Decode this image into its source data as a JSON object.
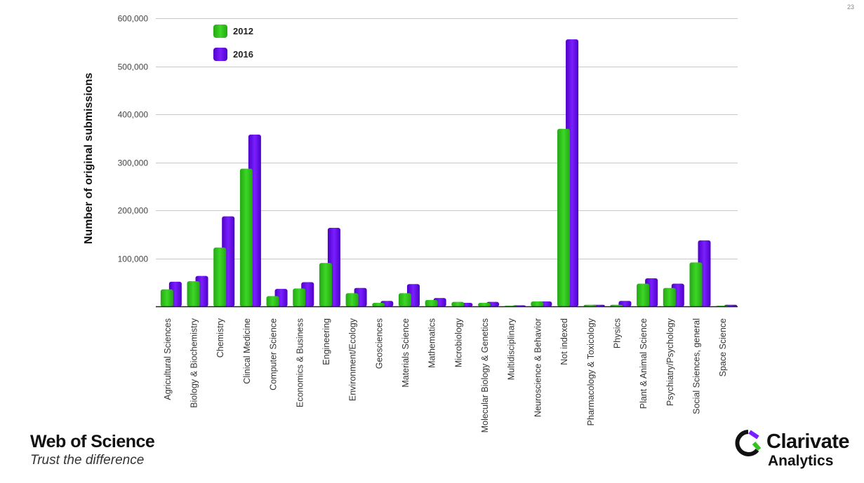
{
  "page": {
    "number": "23"
  },
  "branding": {
    "left_title": "Web of Science",
    "left_tagline": "Trust the difference",
    "right_name": "Clarivate",
    "right_sub": "Analytics",
    "logo_icon": "clarivate-logo-icon"
  },
  "colors": {
    "series_2012": "#33c21f",
    "series_2016": "#6a0dff",
    "grid": "#c8c8c8"
  },
  "chart_data": {
    "type": "bar",
    "title": "",
    "xlabel": "",
    "ylabel": "Number of original submissions",
    "ylim": [
      0,
      600000
    ],
    "yticks": [
      100000,
      200000,
      300000,
      400000,
      500000,
      600000
    ],
    "ytick_labels": [
      "100,000",
      "200,000",
      "300,000",
      "400,000",
      "500,000",
      "600,000"
    ],
    "grid": true,
    "legend_position": "top-left",
    "categories": [
      "Agricultural Sciences",
      "Biology & Biochemistry",
      "Chemistry",
      "Clinical Medicine",
      "Computer Science",
      "Economics & Business",
      "Engineering",
      "Environment/Ecology",
      "Geosciences",
      "Materials Science",
      "Mathematics",
      "Microbiology",
      "Molecular Biology & Genetics",
      "Multidisciplinary",
      "Neuroscience & Behavior",
      "Not indexed",
      "Pharmacology & Toxicology",
      "Physics",
      "Plant & Animal Science",
      "Psychiatry/Psychology",
      "Social Sciences, general",
      "Space Science"
    ],
    "series": [
      {
        "name": "2012",
        "color": "#33c21f",
        "values": [
          36000,
          53000,
          123000,
          287000,
          22000,
          38000,
          91000,
          28000,
          8000,
          28000,
          14000,
          10000,
          8000,
          2000,
          11000,
          370000,
          4000,
          4000,
          48000,
          39000,
          92000,
          2000
        ]
      },
      {
        "name": "2016",
        "color": "#6a0dff",
        "values": [
          52000,
          64000,
          188000,
          358000,
          37000,
          51000,
          164000,
          39000,
          12000,
          47000,
          18000,
          8000,
          10000,
          3000,
          11000,
          556000,
          4000,
          12000,
          59000,
          48000,
          138000,
          4000
        ]
      }
    ]
  }
}
